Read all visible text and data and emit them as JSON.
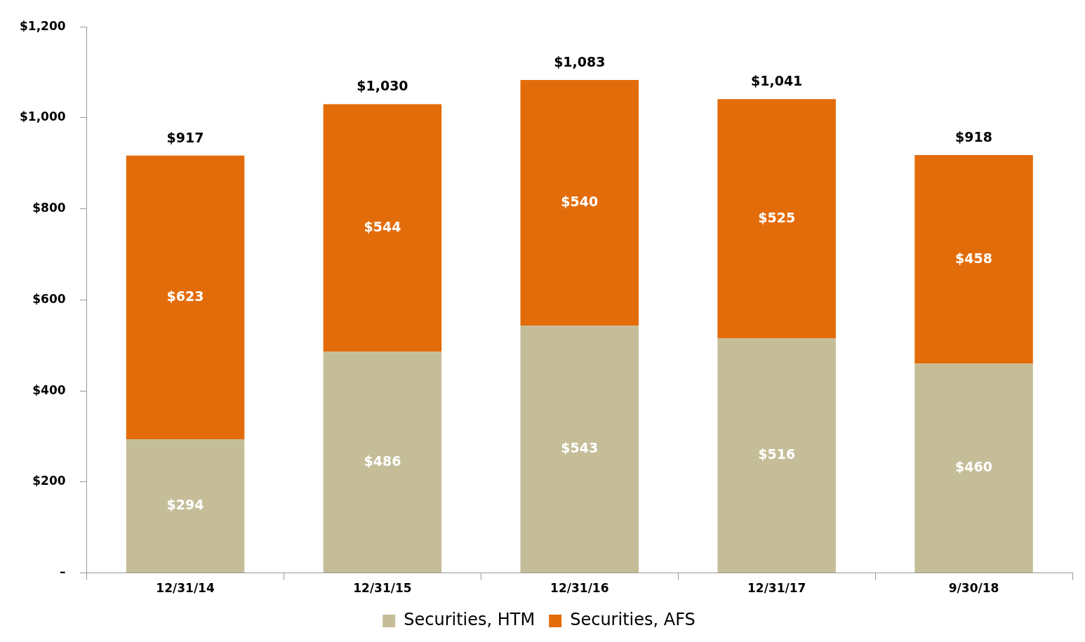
{
  "chart_data": {
    "type": "bar",
    "stacked": true,
    "categories": [
      "12/31/14",
      "12/31/15",
      "12/31/16",
      "12/31/17",
      "9/30/18"
    ],
    "series": [
      {
        "name": "Securities, HTM",
        "color": "#c5bd98",
        "values": [
          294,
          486,
          543,
          516,
          460
        ],
        "value_labels": [
          "$294",
          "$486",
          "$543",
          "$516",
          "$460"
        ]
      },
      {
        "name": "Securities, AFS",
        "color": "#e36c0a",
        "values": [
          623,
          544,
          540,
          525,
          458
        ],
        "value_labels": [
          "$623",
          "$544",
          "$540",
          "$525",
          "$458"
        ]
      }
    ],
    "totals": [
      "$917",
      "$1,030",
      "$1,083",
      "$1,041",
      "$918"
    ],
    "ylim": [
      0,
      1200
    ],
    "yticks": [
      {
        "value": 0,
        "label": "–"
      },
      {
        "value": 200,
        "label": "$200"
      },
      {
        "value": 400,
        "label": "$400"
      },
      {
        "value": 600,
        "label": "$600"
      },
      {
        "value": 800,
        "label": "$800"
      },
      {
        "value": 1000,
        "label": "$1,000"
      },
      {
        "value": 1200,
        "label": "$1,200"
      }
    ],
    "grid": false,
    "legend": "bottom"
  }
}
